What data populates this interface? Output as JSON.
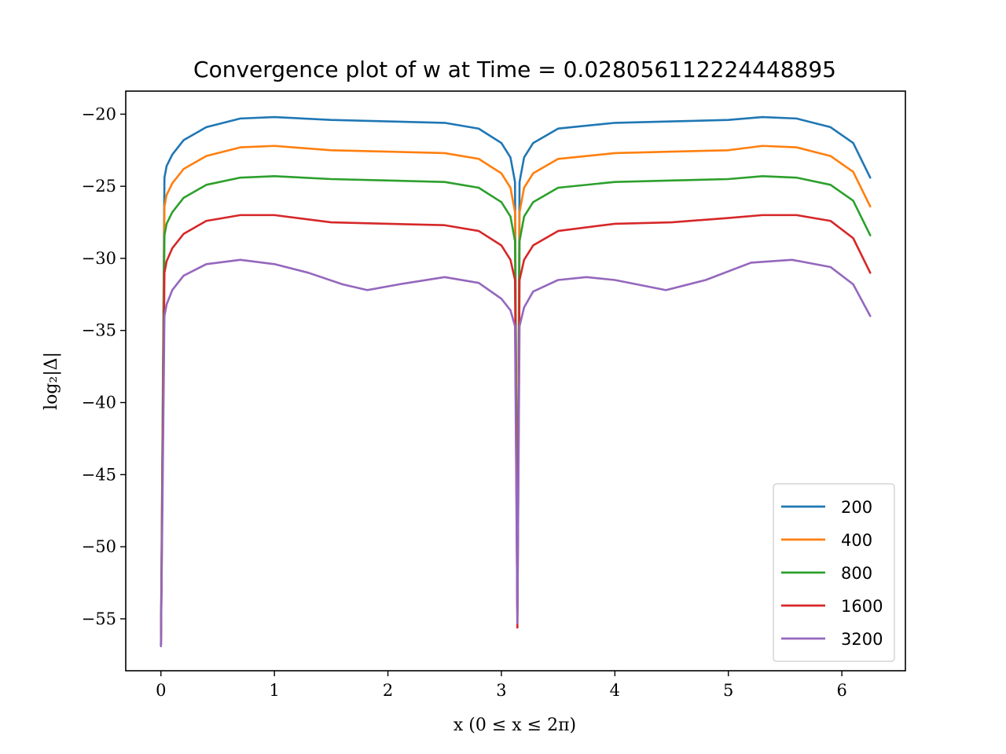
{
  "chart_data": {
    "type": "line",
    "title": "Convergence plot of w at Time = 0.028056112224448895",
    "xlabel": "x (0 ≤ x ≤ 2π)",
    "ylabel": "log₂|Δ|",
    "xlim": [
      -0.31,
      6.56
    ],
    "ylim": [
      -58.6,
      -18.4
    ],
    "xticks": [
      0,
      1,
      2,
      3,
      4,
      5,
      6
    ],
    "xtick_labels": [
      "0",
      "1",
      "2",
      "3",
      "4",
      "5",
      "6"
    ],
    "yticks": [
      -20,
      -25,
      -30,
      -35,
      -40,
      -45,
      -50,
      -55
    ],
    "ytick_labels": [
      "−20",
      "−25",
      "−30",
      "−35",
      "−40",
      "−45",
      "−50",
      "−55"
    ],
    "grid": false,
    "legend_position": "lower-right",
    "series": [
      {
        "name": "200",
        "color": "#1f77b4",
        "x": [
          0.0,
          0.031,
          0.05,
          0.1,
          0.2,
          0.4,
          0.7,
          1.0,
          1.5,
          2.0,
          2.5,
          2.8,
          3.0,
          3.08,
          3.12,
          3.141,
          3.16,
          3.2,
          3.28,
          3.5,
          4.0,
          4.5,
          5.0,
          5.3,
          5.6,
          5.9,
          6.1,
          6.25
        ],
        "y": [
          -56.8,
          -24.4,
          -23.6,
          -22.8,
          -21.8,
          -20.9,
          -20.3,
          -20.2,
          -20.4,
          -20.5,
          -20.6,
          -21.0,
          -22.0,
          -23.0,
          -24.7,
          -54.5,
          -24.7,
          -23.0,
          -22.0,
          -21.0,
          -20.6,
          -20.5,
          -20.4,
          -20.2,
          -20.3,
          -20.9,
          -22.0,
          -24.4
        ]
      },
      {
        "name": "400",
        "color": "#ff7f0e",
        "x": [
          0.0,
          0.031,
          0.05,
          0.1,
          0.2,
          0.4,
          0.7,
          1.0,
          1.5,
          2.0,
          2.5,
          2.8,
          3.0,
          3.08,
          3.12,
          3.141,
          3.16,
          3.2,
          3.28,
          3.5,
          4.0,
          4.5,
          5.0,
          5.3,
          5.6,
          5.9,
          6.1,
          6.25
        ],
        "y": [
          -56.8,
          -26.4,
          -25.6,
          -24.8,
          -23.8,
          -22.9,
          -22.3,
          -22.2,
          -22.5,
          -22.6,
          -22.7,
          -23.1,
          -24.1,
          -25.1,
          -26.8,
          -54.5,
          -26.8,
          -25.1,
          -24.1,
          -23.1,
          -22.7,
          -22.6,
          -22.5,
          -22.2,
          -22.3,
          -22.9,
          -24.0,
          -26.4
        ]
      },
      {
        "name": "800",
        "color": "#2ca02c",
        "x": [
          0.0,
          0.031,
          0.05,
          0.1,
          0.2,
          0.4,
          0.7,
          1.0,
          1.5,
          2.0,
          2.5,
          2.8,
          3.0,
          3.08,
          3.12,
          3.141,
          3.16,
          3.2,
          3.28,
          3.5,
          4.0,
          4.5,
          5.0,
          5.3,
          5.6,
          5.9,
          6.1,
          6.25
        ],
        "y": [
          -56.8,
          -28.4,
          -27.6,
          -26.8,
          -25.8,
          -24.9,
          -24.4,
          -24.3,
          -24.5,
          -24.6,
          -24.7,
          -25.1,
          -26.1,
          -27.1,
          -28.8,
          -54.6,
          -28.8,
          -27.1,
          -26.1,
          -25.1,
          -24.7,
          -24.6,
          -24.5,
          -24.3,
          -24.4,
          -24.9,
          -26.0,
          -28.4
        ]
      },
      {
        "name": "1600",
        "color": "#d62728",
        "x": [
          0.0,
          0.031,
          0.05,
          0.1,
          0.2,
          0.4,
          0.7,
          1.0,
          1.5,
          2.0,
          2.5,
          2.8,
          3.0,
          3.08,
          3.12,
          3.141,
          3.16,
          3.2,
          3.28,
          3.5,
          4.0,
          4.5,
          5.0,
          5.3,
          5.6,
          5.9,
          6.1,
          6.25
        ],
        "y": [
          -56.8,
          -31.0,
          -30.2,
          -29.3,
          -28.3,
          -27.4,
          -27.0,
          -27.0,
          -27.5,
          -27.6,
          -27.7,
          -28.1,
          -29.1,
          -30.1,
          -31.5,
          -55.6,
          -31.5,
          -30.1,
          -29.1,
          -28.1,
          -27.6,
          -27.5,
          -27.2,
          -27.0,
          -27.0,
          -27.4,
          -28.6,
          -31.0
        ]
      },
      {
        "name": "3200",
        "color": "#9467bd",
        "x": [
          0.0,
          0.031,
          0.05,
          0.1,
          0.2,
          0.4,
          0.7,
          1.0,
          1.3,
          1.6,
          1.82,
          2.1,
          2.5,
          2.8,
          3.0,
          3.08,
          3.12,
          3.141,
          3.16,
          3.2,
          3.28,
          3.5,
          3.75,
          4.0,
          4.45,
          4.8,
          5.2,
          5.56,
          5.9,
          6.1,
          6.25
        ],
        "y": [
          -56.9,
          -34.0,
          -33.2,
          -32.2,
          -31.2,
          -30.4,
          -30.1,
          -30.4,
          -31.0,
          -31.8,
          -32.2,
          -31.8,
          -31.3,
          -31.7,
          -32.8,
          -33.6,
          -34.7,
          -55.3,
          -34.7,
          -33.4,
          -32.3,
          -31.5,
          -31.3,
          -31.5,
          -32.2,
          -31.5,
          -30.3,
          -30.1,
          -30.6,
          -31.8,
          -34.0
        ]
      }
    ]
  }
}
